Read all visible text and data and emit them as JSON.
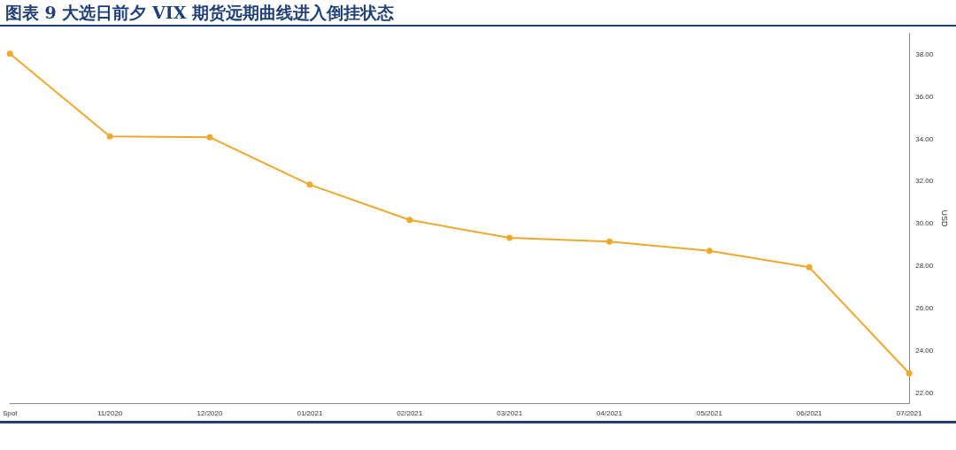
{
  "chart_data": {
    "type": "line",
    "title": "图表 9  大选日前夕 VIX 期货远期曲线进入倒挂状态",
    "ylabel": "USD",
    "categories": [
      "Spot",
      "11/2020",
      "12/2020",
      "01/2021",
      "02/2021",
      "03/2021",
      "04/2021",
      "05/2021",
      "06/2021",
      "07/2021"
    ],
    "series": [
      {
        "color": "#f0a82c",
        "values": [
          38.04,
          34.13,
          34.09,
          31.85,
          30.18,
          29.33,
          29.16,
          28.72,
          27.94,
          22.93
        ]
      }
    ],
    "ylim": [
      21.5,
      39
    ],
    "yticks": [
      {
        "value": 22,
        "label": "22.00"
      },
      {
        "value": 24,
        "label": "24.00"
      },
      {
        "value": 26,
        "label": "26.00"
      },
      {
        "value": 28,
        "label": "28.00"
      },
      {
        "value": 30,
        "label": "30.00"
      },
      {
        "value": 32,
        "label": "32.00"
      },
      {
        "value": 34,
        "label": "34.00"
      },
      {
        "value": 36,
        "label": "36.00"
      },
      {
        "value": 38,
        "label": "38.00"
      }
    ],
    "grid": false,
    "legend": false,
    "marker": "circle",
    "line_style": "solid"
  }
}
